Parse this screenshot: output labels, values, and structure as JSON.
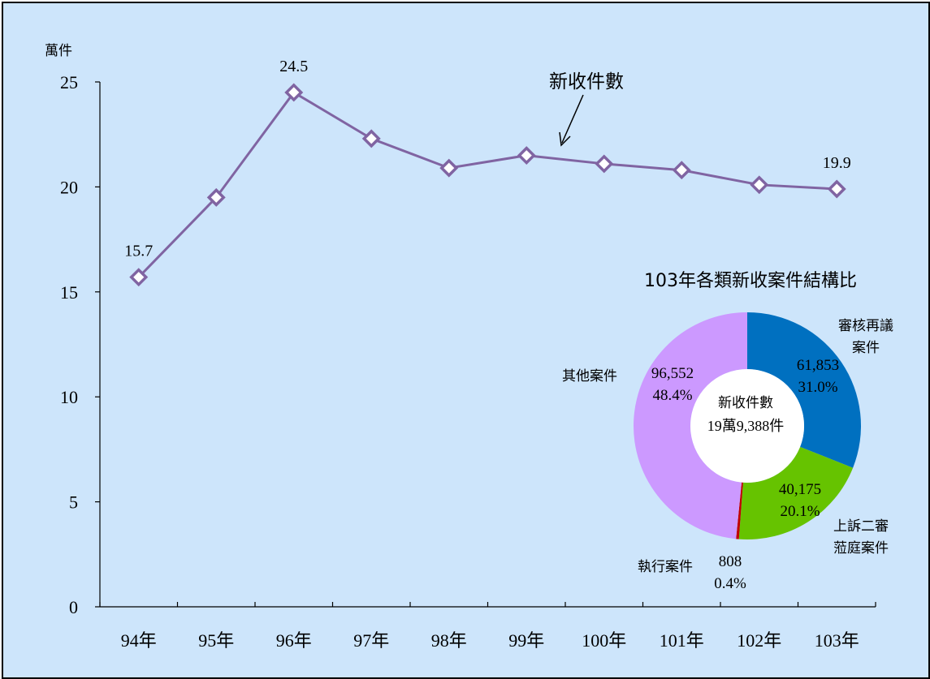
{
  "colors": {
    "background": "#cde5fb",
    "line": "#8064a2",
    "marker_fill": "#ffffff",
    "axis": "#000000",
    "donut_review": "#0070c0",
    "donut_appeal": "#66c300",
    "donut_execution": "#c00000",
    "donut_other": "#cc99ff"
  },
  "chart_data": [
    {
      "type": "line",
      "ylabel": "萬件",
      "ylim": [
        0,
        25
      ],
      "yticks": [
        "0",
        "5",
        "10",
        "15",
        "20",
        "25"
      ],
      "categories": [
        "94年",
        "95年",
        "96年",
        "97年",
        "98年",
        "99年",
        "100年",
        "101年",
        "102年",
        "103年"
      ],
      "series": [
        {
          "name": "新收件數",
          "values": [
            15.7,
            19.5,
            24.5,
            22.3,
            20.9,
            21.5,
            21.1,
            20.8,
            20.1,
            19.9
          ]
        }
      ],
      "data_labels": [
        {
          "index": 0,
          "text": "15.7"
        },
        {
          "index": 2,
          "text": "24.5"
        },
        {
          "index": 9,
          "text": "19.9"
        }
      ]
    },
    {
      "type": "pie",
      "title": "103年各類新收案件結構比",
      "center_label": {
        "line1": "新收件數",
        "line2": "19萬9,388件"
      },
      "slices": [
        {
          "name_lines": [
            "審核再議",
            "案件"
          ],
          "value": 61853,
          "value_text": "61,853",
          "percent_text": "31.0%",
          "color_key": "donut_review"
        },
        {
          "name_lines": [
            "上訴二審",
            "蒞庭案件"
          ],
          "value": 40175,
          "value_text": "40,175",
          "percent_text": "20.1%",
          "color_key": "donut_appeal"
        },
        {
          "name_lines": [
            "執行案件"
          ],
          "value": 808,
          "value_text": "808",
          "percent_text": "0.4%",
          "color_key": "donut_execution"
        },
        {
          "name_lines": [
            "其他案件"
          ],
          "value": 96552,
          "value_text": "96,552",
          "percent_text": "48.4%",
          "color_key": "donut_other"
        }
      ]
    }
  ]
}
